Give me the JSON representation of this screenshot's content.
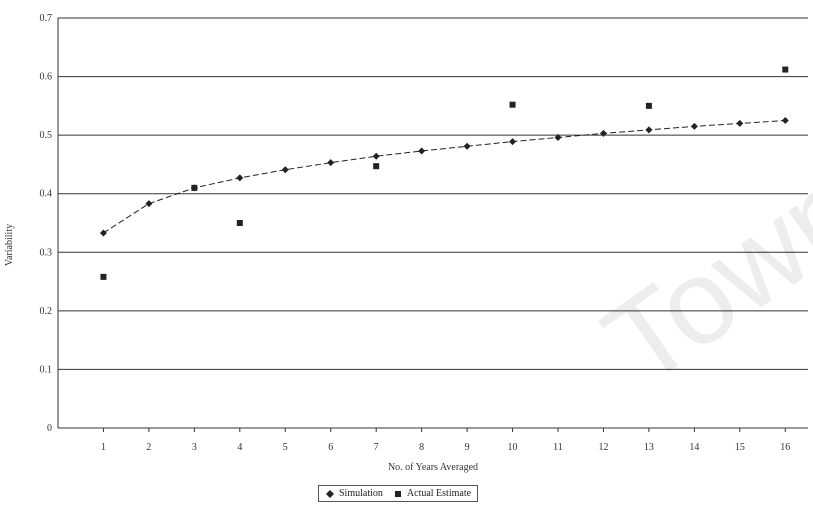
{
  "chart_data": {
    "type": "scatter",
    "title": "",
    "xlabel": "No. of Years Averaged",
    "ylabel": "Variability",
    "x": [
      1,
      2,
      3,
      4,
      5,
      6,
      7,
      8,
      9,
      10,
      11,
      12,
      13,
      14,
      15,
      16
    ],
    "xlim": [
      0,
      16.5
    ],
    "ylim": [
      0,
      0.7
    ],
    "yticks": [
      "0",
      "0.1",
      "0.2",
      "0.3",
      "0.4",
      "0.5",
      "0.6",
      "0.7"
    ],
    "xticks": [
      "1",
      "2",
      "3",
      "4",
      "5",
      "6",
      "7",
      "8",
      "9",
      "10",
      "11",
      "12",
      "13",
      "14",
      "15",
      "16"
    ],
    "grid": "horizontal",
    "legend_position": "bottom",
    "series": [
      {
        "name": "Simulation",
        "marker": "diamond",
        "line": "dashed",
        "color": "#222222",
        "values": [
          0.333,
          0.383,
          0.41,
          0.427,
          0.441,
          0.453,
          0.464,
          0.473,
          0.481,
          0.489,
          0.496,
          0.503,
          0.509,
          0.515,
          0.52,
          0.525
        ]
      },
      {
        "name": "Actual Estimate",
        "marker": "square",
        "line": "none",
        "color": "#222222",
        "x": [
          1,
          3,
          4,
          7,
          10,
          13,
          16
        ],
        "values": [
          0.258,
          0.41,
          0.35,
          0.447,
          0.552,
          0.55,
          0.612
        ]
      }
    ]
  },
  "watermark": "Town"
}
